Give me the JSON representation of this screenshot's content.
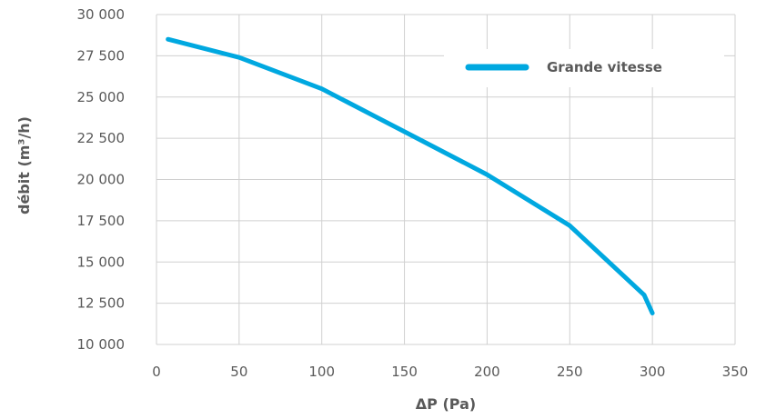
{
  "chart_data": {
    "type": "line",
    "title": "",
    "xlabel": "ΔP (Pa)",
    "ylabel": "débit (m³/h)",
    "xlim": [
      0,
      350
    ],
    "ylim": [
      10000,
      30000
    ],
    "x_ticks": [
      "0",
      "50",
      "100",
      "150",
      "200",
      "250",
      "300",
      "350"
    ],
    "y_ticks": [
      "10 000",
      "12 500",
      "15 000",
      "17 500",
      "20 000",
      "22 500",
      "25 000",
      "27 500",
      "30 000"
    ],
    "grid": true,
    "legend_position": "top-right",
    "series": [
      {
        "name": "Grande vitesse",
        "color": "#00A8E0",
        "x": [
          7,
          50,
          100,
          150,
          200,
          250,
          295,
          300
        ],
        "y": [
          28500,
          27400,
          25500,
          22900,
          20300,
          17200,
          13000,
          11900
        ]
      }
    ]
  }
}
